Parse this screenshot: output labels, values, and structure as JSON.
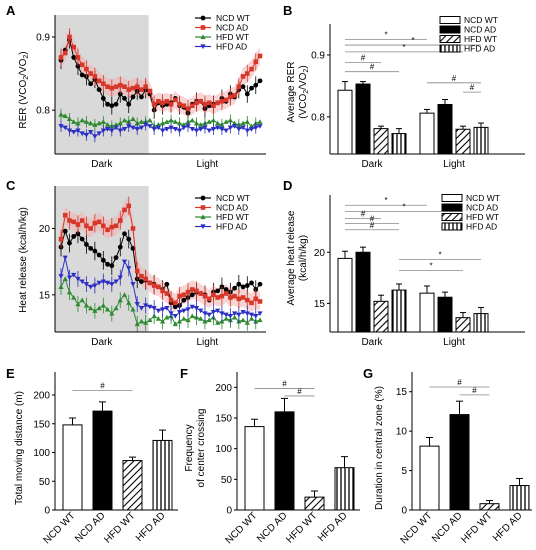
{
  "panels": {
    "A": {
      "label": "A",
      "chart_data": {
        "type": "line",
        "ylabel": "RER (VCO2/VO2)",
        "ylim": [
          0.74,
          0.93
        ],
        "yticks": [
          0.8,
          0.9
        ],
        "xlim": [
          0,
          48
        ],
        "phase_labels": [
          "Dark",
          "Light"
        ],
        "dark_end_index": 20,
        "series": [
          {
            "name": "NCD WT",
            "color": "#000000",
            "marker": "circle",
            "values": [
              0.868,
              0.882,
              0.896,
              0.872,
              0.86,
              0.848,
              0.846,
              0.836,
              0.842,
              0.828,
              0.816,
              0.808,
              0.806,
              0.808,
              0.822,
              0.816,
              0.808,
              0.818,
              0.826,
              0.818,
              0.828,
              0.822,
              0.8,
              0.81,
              0.806,
              0.808,
              0.81,
              0.816,
              0.806,
              0.804,
              0.796,
              0.808,
              0.812,
              0.812,
              0.802,
              0.806,
              0.808,
              0.81,
              0.816,
              0.812,
              0.822,
              0.818,
              0.828,
              0.832,
              0.822,
              0.83,
              0.834,
              0.84
            ],
            "err": 0.012
          },
          {
            "name": "NCD AD",
            "color": "#d9362a",
            "marker": "square",
            "values": [
              0.872,
              0.878,
              0.9,
              0.886,
              0.872,
              0.862,
              0.856,
              0.85,
              0.846,
              0.84,
              0.836,
              0.832,
              0.83,
              0.832,
              0.834,
              0.832,
              0.828,
              0.83,
              0.832,
              0.828,
              0.832,
              0.826,
              0.808,
              0.812,
              0.81,
              0.812,
              0.808,
              0.814,
              0.808,
              0.806,
              0.802,
              0.806,
              0.81,
              0.812,
              0.808,
              0.81,
              0.806,
              0.81,
              0.812,
              0.814,
              0.818,
              0.82,
              0.832,
              0.846,
              0.85,
              0.856,
              0.866,
              0.874
            ],
            "err": 0.012
          },
          {
            "name": "HFD WT",
            "color": "#2e8a2e",
            "marker": "triangle-up",
            "values": [
              0.794,
              0.792,
              0.788,
              0.784,
              0.782,
              0.786,
              0.784,
              0.782,
              0.78,
              0.782,
              0.784,
              0.78,
              0.778,
              0.78,
              0.782,
              0.786,
              0.784,
              0.788,
              0.782,
              0.784,
              0.784,
              0.786,
              0.778,
              0.78,
              0.782,
              0.784,
              0.786,
              0.784,
              0.782,
              0.78,
              0.784,
              0.786,
              0.782,
              0.78,
              0.782,
              0.784,
              0.786,
              0.782,
              0.78,
              0.784,
              0.786,
              0.782,
              0.78,
              0.782,
              0.784,
              0.778,
              0.782,
              0.784
            ],
            "err": 0.008
          },
          {
            "name": "HFD AD",
            "color": "#2b2fc4",
            "marker": "triangle-down",
            "values": [
              0.778,
              0.776,
              0.772,
              0.77,
              0.772,
              0.768,
              0.766,
              0.77,
              0.764,
              0.768,
              0.772,
              0.774,
              0.772,
              0.776,
              0.772,
              0.774,
              0.778,
              0.776,
              0.774,
              0.776,
              0.78,
              0.778,
              0.774,
              0.776,
              0.772,
              0.774,
              0.776,
              0.774,
              0.772,
              0.776,
              0.778,
              0.774,
              0.772,
              0.774,
              0.776,
              0.772,
              0.774,
              0.776,
              0.774,
              0.772,
              0.776,
              0.778,
              0.774,
              0.776,
              0.772,
              0.774,
              0.776,
              0.778
            ],
            "err": 0.008
          }
        ],
        "highlight_color": "#f2b3b3",
        "shade_color": "#d9d9d9"
      }
    },
    "B": {
      "label": "B",
      "chart_data": {
        "type": "bar",
        "ylabel": "Average RER (VCO2/VO2)",
        "ylim": [
          0.74,
          0.95
        ],
        "yticks": [
          0.8,
          0.9
        ],
        "groups": [
          "Dark",
          "Light"
        ],
        "series": [
          {
            "name": "NCD WT",
            "pattern": "open",
            "values": [
              0.843,
              0.806
            ],
            "err": [
              0.014,
              0.006
            ]
          },
          {
            "name": "NCD AD",
            "pattern": "solid",
            "values": [
              0.853,
              0.82
            ],
            "err": [
              0.004,
              0.008
            ]
          },
          {
            "name": "HFD WT",
            "pattern": "hatch",
            "values": [
              0.781,
              0.78
            ],
            "err": [
              0.004,
              0.005
            ]
          },
          {
            "name": "HFD AD",
            "pattern": "vline",
            "values": [
              0.773,
              0.783
            ],
            "err": [
              0.008,
              0.007
            ]
          }
        ],
        "significance": [
          {
            "label": "*",
            "y": 0.925,
            "from": [
              0,
              0
            ],
            "to": [
              1,
              0
            ]
          },
          {
            "label": "*",
            "y": 0.916,
            "from": [
              0,
              0
            ],
            "to": [
              1,
              3
            ]
          },
          {
            "label": "*",
            "y": 0.905,
            "from": [
              0,
              0
            ],
            "to": [
              1,
              2
            ]
          },
          {
            "label": "#",
            "y": 0.888,
            "from": [
              0,
              0
            ],
            "to": [
              0,
              2
            ]
          },
          {
            "label": "#",
            "y": 0.873,
            "from": [
              0,
              0
            ],
            "to": [
              0,
              3
            ]
          },
          {
            "label": "#",
            "y": 0.855,
            "from": [
              1,
              0
            ],
            "to": [
              1,
              3
            ]
          },
          {
            "label": "#",
            "y": 0.84,
            "from": [
              1,
              2
            ],
            "to": [
              1,
              3
            ]
          }
        ]
      }
    },
    "C": {
      "label": "C",
      "chart_data": {
        "type": "line",
        "ylabel": "Heat release (kcal/h/kg)",
        "ylim": [
          12.2,
          23.2
        ],
        "yticks": [
          15,
          20
        ],
        "xlim": [
          0,
          48
        ],
        "phase_labels": [
          "Dark",
          "Light"
        ],
        "dark_end_index": 20,
        "series": [
          {
            "name": "NCD WT",
            "color": "#000000",
            "marker": "circle",
            "values": [
              18.6,
              19.8,
              18.9,
              19.4,
              19.6,
              19.2,
              18.8,
              18.5,
              18.3,
              18.0,
              17.6,
              17.3,
              17.2,
              17.8,
              18.6,
              19.6,
              19.2,
              18.5,
              16.2,
              16.0,
              16.1,
              15.9,
              15.8,
              15.6,
              15.4,
              15.8,
              14.4,
              14.1,
              14.2,
              14.6,
              14.8,
              15.0,
              15.2,
              15.1,
              15.0,
              14.6,
              15.2,
              15.3,
              15.6,
              15.4,
              15.2,
              15.5,
              15.8,
              15.6,
              15.7,
              15.9,
              15.4,
              15.8
            ],
            "err": 0.7
          },
          {
            "name": "NCD AD",
            "color": "#d9362a",
            "marker": "square",
            "values": [
              19.2,
              21.0,
              20.6,
              20.5,
              20.3,
              20.6,
              20.2,
              20.0,
              20.4,
              20.5,
              20.2,
              19.9,
              20.1,
              20.2,
              20.6,
              21.4,
              21.7,
              20.0,
              16.8,
              16.4,
              16.2,
              15.9,
              15.7,
              15.6,
              15.3,
              15.1,
              14.6,
              14.4,
              14.9,
              15.0,
              15.2,
              15.4,
              15.3,
              15.1,
              14.9,
              14.7,
              15.0,
              14.8,
              14.9,
              15.1,
              14.8,
              14.9,
              14.7,
              14.8,
              14.6,
              14.4,
              14.7,
              14.5
            ],
            "err": 0.7
          },
          {
            "name": "HFD WT",
            "color": "#2e8a2e",
            "marker": "triangle-up",
            "values": [
              15.6,
              16.2,
              15.2,
              14.8,
              14.3,
              14.6,
              14.2,
              14.0,
              13.8,
              14.0,
              14.2,
              13.9,
              13.6,
              14.0,
              14.6,
              15.0,
              14.4,
              13.9,
              12.8,
              13.0,
              12.9,
              13.1,
              13.4,
              13.2,
              13.0,
              13.3,
              13.4,
              12.8,
              13.0,
              13.2,
              13.1,
              13.4,
              13.3,
              13.2,
              13.0,
              13.1,
              13.3,
              12.9,
              13.0,
              13.2,
              13.1,
              13.3,
              13.0,
              13.1,
              12.9,
              13.2,
              13.0,
              13.1
            ],
            "err": 0.6
          },
          {
            "name": "HFD AD",
            "color": "#2b2fc4",
            "marker": "triangle-down",
            "values": [
              16.4,
              17.8,
              16.3,
              16.5,
              16.2,
              16.0,
              15.8,
              15.6,
              15.7,
              15.9,
              16.0,
              15.9,
              15.8,
              16.0,
              16.3,
              17.5,
              17.0,
              15.8,
              14.3,
              14.0,
              14.2,
              14.1,
              14.0,
              13.8,
              13.9,
              14.0,
              13.6,
              13.4,
              13.7,
              13.8,
              13.9,
              14.1,
              14.0,
              13.8,
              13.6,
              13.5,
              13.7,
              13.8,
              13.6,
              13.5,
              13.4,
              13.6,
              13.5,
              13.7,
              13.6,
              13.5,
              13.4,
              13.6
            ],
            "err": 0.6
          }
        ],
        "highlight_color": "#f2b3b3",
        "shade_color": "#d9d9d9"
      }
    },
    "D": {
      "label": "D",
      "chart_data": {
        "type": "bar",
        "ylabel": "Average heat release (kcal/h/kg)",
        "ylim": [
          12.2,
          25.6
        ],
        "yticks": [
          15,
          20
        ],
        "groups": [
          "Dark",
          "Light"
        ],
        "series": [
          {
            "name": "NCD WT",
            "pattern": "open",
            "values": [
              19.4,
              16.0
            ],
            "err": [
              0.7,
              0.7
            ]
          },
          {
            "name": "NCD AD",
            "pattern": "solid",
            "values": [
              20.0,
              15.6
            ],
            "err": [
              0.5,
              0.5
            ]
          },
          {
            "name": "HFD WT",
            "pattern": "hatch",
            "values": [
              15.2,
              13.6
            ],
            "err": [
              0.6,
              0.5
            ]
          },
          {
            "name": "HFD AD",
            "pattern": "vline",
            "values": [
              16.3,
              14.0
            ],
            "err": [
              0.6,
              0.6
            ]
          }
        ],
        "significance": [
          {
            "label": "*",
            "y": 24.6,
            "from": [
              0,
              0
            ],
            "to": [
              1,
              0
            ]
          },
          {
            "label": "*",
            "y": 24.0,
            "from": [
              0,
              0
            ],
            "to": [
              1,
              2
            ]
          },
          {
            "label": "#",
            "y": 23.3,
            "from": [
              0,
              0
            ],
            "to": [
              0,
              2
            ]
          },
          {
            "label": "#",
            "y": 22.8,
            "from": [
              0,
              0
            ],
            "to": [
              0,
              3
            ]
          },
          {
            "label": "#",
            "y": 22.2,
            "from": [
              0,
              0
            ],
            "to": [
              0,
              3
            ]
          },
          {
            "label": "*",
            "y": 19.3,
            "from": [
              0,
              3
            ],
            "to": [
              1,
              3
            ]
          },
          {
            "label": "*",
            "y": 18.2,
            "from": [
              0,
              3
            ],
            "to": [
              1,
              2
            ]
          }
        ]
      }
    },
    "E": {
      "label": "E",
      "chart_data": {
        "type": "bar",
        "ylabel": "Total moving distance (m)",
        "ylim": [
          0,
          240
        ],
        "yticks": [
          0,
          50,
          100,
          150,
          200
        ],
        "categories": [
          "NCD WT",
          "NCD AD",
          "HFD WT",
          "HFD AD"
        ],
        "patterns": [
          "open",
          "solid",
          "hatch",
          "vline"
        ],
        "values": [
          148,
          172,
          86,
          121
        ],
        "err": [
          12,
          16,
          6,
          18
        ],
        "significance": [
          {
            "label": "#",
            "y": 208,
            "from": 0,
            "to": 2
          }
        ]
      }
    },
    "F": {
      "label": "F",
      "chart_data": {
        "type": "bar",
        "ylabel": "Frequency of center crossing",
        "ylim": [
          0,
          225
        ],
        "yticks": [
          0,
          50,
          100,
          150,
          200
        ],
        "categories": [
          "NCD WT",
          "NCD AD",
          "HFD WT",
          "HFD AD"
        ],
        "patterns": [
          "open",
          "solid",
          "hatch",
          "vline"
        ],
        "values": [
          136,
          160,
          21,
          69
        ],
        "err": [
          12,
          22,
          10,
          18
        ],
        "significance": [
          {
            "label": "#",
            "y": 198,
            "from": 0,
            "to": 2
          },
          {
            "label": "#",
            "y": 186,
            "from": 1,
            "to": 2
          }
        ]
      }
    },
    "G": {
      "label": "G",
      "chart_data": {
        "type": "bar",
        "ylabel": "Duration in central zone (%)",
        "ylim": [
          0,
          17.5
        ],
        "yticks": [
          0,
          5,
          10,
          15
        ],
        "categories": [
          "NCD WT",
          "NCD AD",
          "HFD WT",
          "HFD AD"
        ],
        "patterns": [
          "open",
          "solid",
          "hatch",
          "vline"
        ],
        "values": [
          8.1,
          12.1,
          0.8,
          3.1
        ],
        "err": [
          1.1,
          1.7,
          0.4,
          0.9
        ],
        "significance": [
          {
            "label": "#",
            "y": 15.6,
            "from": 0,
            "to": 2
          },
          {
            "label": "#",
            "y": 14.6,
            "from": 1,
            "to": 2
          }
        ]
      }
    }
  }
}
